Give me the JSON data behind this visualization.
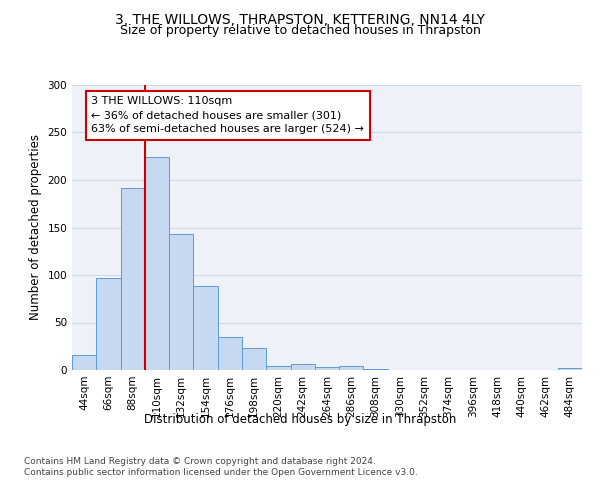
{
  "title": "3, THE WILLOWS, THRAPSTON, KETTERING, NN14 4LY",
  "subtitle": "Size of property relative to detached houses in Thrapston",
  "xlabel": "Distribution of detached houses by size in Thrapston",
  "ylabel": "Number of detached properties",
  "bar_labels": [
    "44sqm",
    "66sqm",
    "88sqm",
    "110sqm",
    "132sqm",
    "154sqm",
    "176sqm",
    "198sqm",
    "220sqm",
    "242sqm",
    "264sqm",
    "286sqm",
    "308sqm",
    "330sqm",
    "352sqm",
    "374sqm",
    "396sqm",
    "418sqm",
    "440sqm",
    "462sqm",
    "484sqm"
  ],
  "bar_values": [
    16,
    97,
    192,
    224,
    143,
    88,
    35,
    23,
    4,
    6,
    3,
    4,
    1,
    0,
    0,
    0,
    0,
    0,
    0,
    0,
    2
  ],
  "bar_color": "#c6d9f0",
  "bar_edge_color": "#5b9bd5",
  "vline_x_index": 3,
  "vline_color": "#cc0000",
  "annotation_text": "3 THE WILLOWS: 110sqm\n← 36% of detached houses are smaller (301)\n63% of semi-detached houses are larger (524) →",
  "annotation_box_edge_color": "#cc0000",
  "ylim": [
    0,
    300
  ],
  "yticks": [
    0,
    50,
    100,
    150,
    200,
    250,
    300
  ],
  "grid_color": "#d0d8e8",
  "background_color": "#eef2f8",
  "footer_text": "Contains HM Land Registry data © Crown copyright and database right 2024.\nContains public sector information licensed under the Open Government Licence v3.0.",
  "title_fontsize": 10,
  "subtitle_fontsize": 9,
  "axis_label_fontsize": 8.5,
  "tick_fontsize": 7.5,
  "annotation_fontsize": 8,
  "footer_fontsize": 6.5
}
